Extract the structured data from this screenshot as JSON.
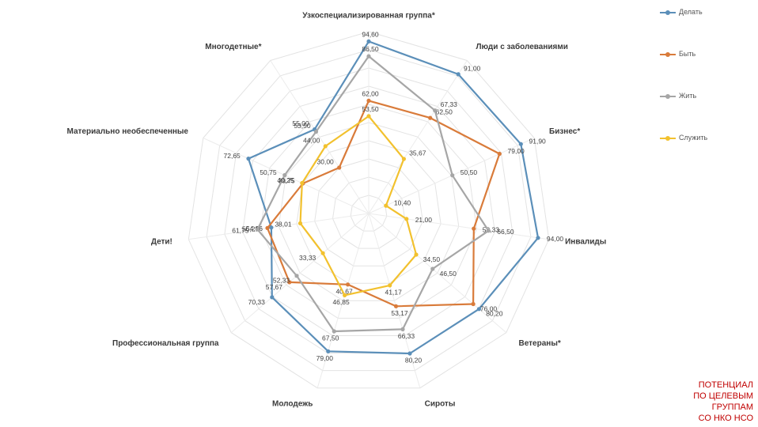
{
  "chart_data": {
    "type": "radar",
    "categories": [
      "Узкоспециализированная группа*",
      "Люди с заболеваниями",
      "Бизнес*",
      "Инвалиды",
      "Ветераны*",
      "Сироты",
      "Молодежь",
      "Профессиональная группа",
      "Дети!",
      "Материально необеспеченные",
      "Многодетные*"
    ],
    "rlim": [
      0,
      100
    ],
    "grid": true,
    "legend_position": "right",
    "series": [
      {
        "name": "Делать",
        "color": "#5b8fb9",
        "values": [
          94.6,
          91.0,
          91.9,
          94.0,
          80.2,
          80.2,
          79.0,
          70.33,
          54.06,
          72.65,
          55.0
        ],
        "labels": [
          "94,60",
          "91,00",
          "91,90",
          "94,00",
          "80,20",
          "80,20",
          "79,00",
          "70,33",
          "54,06",
          "72,65",
          "55,00"
        ]
      },
      {
        "name": "Быть",
        "color": "#d97b3a",
        "values": [
          62.0,
          62.5,
          79.0,
          58.33,
          76.0,
          53.17,
          40.67,
          57.67,
          56.21,
          39.75,
          30.0
        ],
        "labels": [
          "62,00",
          "62,50",
          "79,00",
          "58,33",
          "76,00",
          "53,17",
          "40,67",
          "57,67",
          "56,21",
          "39,75",
          "30,00"
        ]
      },
      {
        "name": "Жить",
        "color": "#a6a6a6",
        "values": [
          86.5,
          67.33,
          50.5,
          66.5,
          46.5,
          66.33,
          67.5,
          52.33,
          61.75,
          50.75,
          53.5
        ],
        "labels": [
          "86,50",
          "67,33",
          "50,50",
          "66,50",
          "46,50",
          "66,33",
          "67,50",
          "52,33",
          "61,75",
          "50,75",
          "53,50"
        ]
      },
      {
        "name": "Служить",
        "color": "#f2c12e",
        "values": [
          53.5,
          35.67,
          10.4,
          21.0,
          34.5,
          41.17,
          46.85,
          33.33,
          38.01,
          40.25,
          44.0
        ],
        "labels": [
          "53,50",
          "35,67",
          "10,40",
          "21,00",
          "34,50",
          "41,17",
          "46,85",
          "33,33",
          "38,01",
          "40,25",
          "44,00"
        ]
      }
    ]
  },
  "caption": {
    "line1": "ПОТЕНЦИАЛ",
    "line2": "ПО ЦЕЛЕВЫМ",
    "line3": "ГРУППАМ",
    "line4": "СО НКО НСО"
  }
}
